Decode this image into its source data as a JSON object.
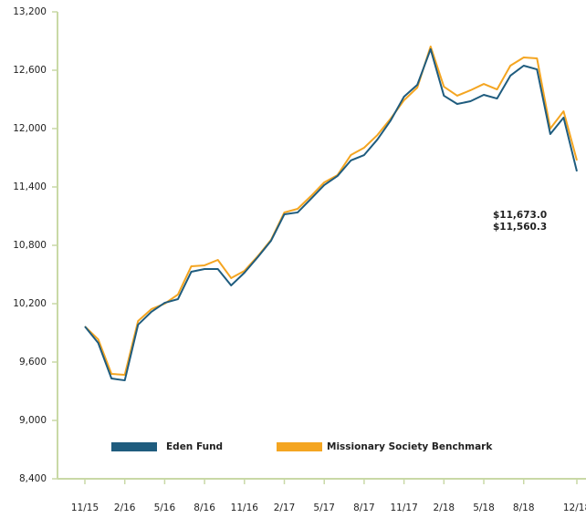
{
  "chart_data": {
    "type": "line",
    "categories": [
      "11/15",
      null,
      null,
      "2/16",
      null,
      null,
      "5/16",
      null,
      null,
      "8/16",
      null,
      null,
      "11/16",
      null,
      null,
      "2/17",
      null,
      null,
      "5/17",
      null,
      null,
      "8/17",
      null,
      null,
      "11/17",
      null,
      null,
      "2/18",
      null,
      null,
      "5/18",
      null,
      null,
      "8/18",
      null,
      null,
      null,
      "12/18"
    ],
    "series": [
      {
        "name": "Eden Fund",
        "color": "#1f5c7e",
        "values": [
          9966,
          9797,
          9431,
          9412,
          9984,
          10116,
          10209,
          10247,
          10528,
          10556,
          10556,
          10388,
          10519,
          10678,
          10847,
          11119,
          11138,
          11278,
          11419,
          11513,
          11672,
          11728,
          11888,
          12084,
          12328,
          12450,
          12816,
          12338,
          12253,
          12281,
          12347,
          12309,
          12544,
          12647,
          12609,
          11944,
          12113,
          11560.3
        ],
        "value_labels": [
          null,
          null,
          null,
          null,
          null,
          null,
          null,
          null,
          null,
          null,
          null,
          null,
          null,
          null,
          null,
          null,
          null,
          null,
          null,
          null,
          null,
          null,
          null,
          null,
          null,
          null,
          null,
          null,
          null,
          null,
          null,
          null,
          null,
          null,
          null,
          null,
          null,
          "$11,560.3"
        ]
      },
      {
        "name": "Missionary Society Benchmark",
        "color": "#f4a521",
        "values": [
          9966,
          9834,
          9478,
          9469,
          10022,
          10144,
          10200,
          10294,
          10584,
          10594,
          10650,
          10463,
          10538,
          10688,
          10856,
          11138,
          11175,
          11306,
          11447,
          11522,
          11728,
          11803,
          11934,
          12103,
          12291,
          12422,
          12844,
          12431,
          12338,
          12394,
          12459,
          12403,
          12647,
          12731,
          12722,
          12000,
          12178,
          11673.0
        ],
        "value_labels": [
          null,
          null,
          null,
          null,
          null,
          null,
          null,
          null,
          null,
          null,
          null,
          null,
          null,
          null,
          null,
          null,
          null,
          null,
          null,
          null,
          null,
          null,
          null,
          null,
          null,
          null,
          null,
          null,
          null,
          null,
          null,
          null,
          null,
          null,
          null,
          null,
          null,
          "$11,673.0"
        ]
      }
    ],
    "ylim": [
      8400,
      13200
    ],
    "yticks": [
      {
        "value": 8400,
        "label": "8,400"
      },
      {
        "value": 9000,
        "label": "9,000"
      },
      {
        "value": 9600,
        "label": "9,600"
      },
      {
        "value": 10200,
        "label": "10,200"
      },
      {
        "value": 10800,
        "label": "10,800"
      },
      {
        "value": 11400,
        "label": "11,400"
      },
      {
        "value": 12000,
        "label": "12,000"
      },
      {
        "value": 12600,
        "label": "12,600"
      },
      {
        "value": 13200,
        "label": "13,200"
      }
    ],
    "grid": false
  }
}
